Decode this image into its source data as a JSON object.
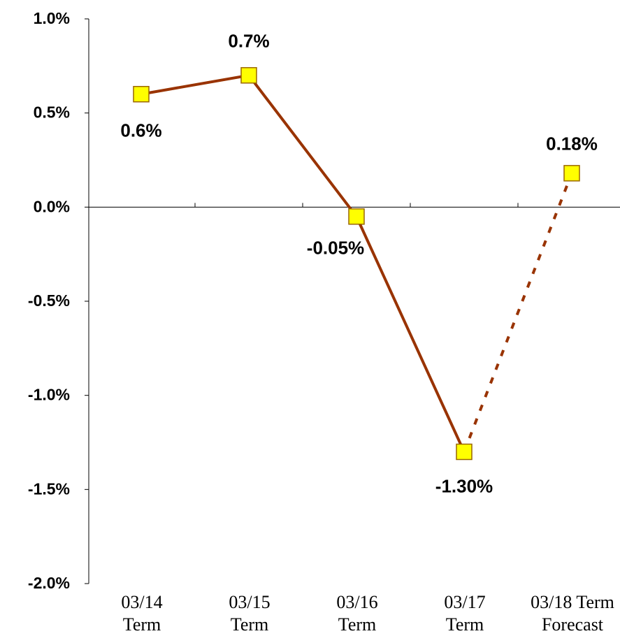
{
  "chart_data": {
    "type": "line",
    "categories": [
      "03/14\nTerm",
      "03/15\nTerm",
      "03/16\nTerm",
      "03/17\nTerm",
      "03/18 Term\nForecast"
    ],
    "values": [
      0.6,
      0.7,
      -0.05,
      -1.3,
      0.18
    ],
    "value_labels": [
      "0.6%",
      "0.7%",
      "-0.05%",
      "-1.30%",
      "0.18%"
    ],
    "forecast": [
      false,
      false,
      false,
      false,
      true
    ],
    "color": "#993300",
    "marker_color": "#ffff00",
    "ylim": [
      -2,
      1
    ],
    "yticks": [
      {
        "value": -2,
        "label": "-2.0%"
      },
      {
        "value": -1.5,
        "label": "-1.5%"
      },
      {
        "value": -1,
        "label": "-1.0%"
      },
      {
        "value": -0.5,
        "label": "-0.5%"
      },
      {
        "value": 0,
        "label": "0.0%"
      },
      {
        "value": 0.5,
        "label": "0.5%"
      },
      {
        "value": 1,
        "label": "1.0%"
      }
    ],
    "grid": false
  }
}
